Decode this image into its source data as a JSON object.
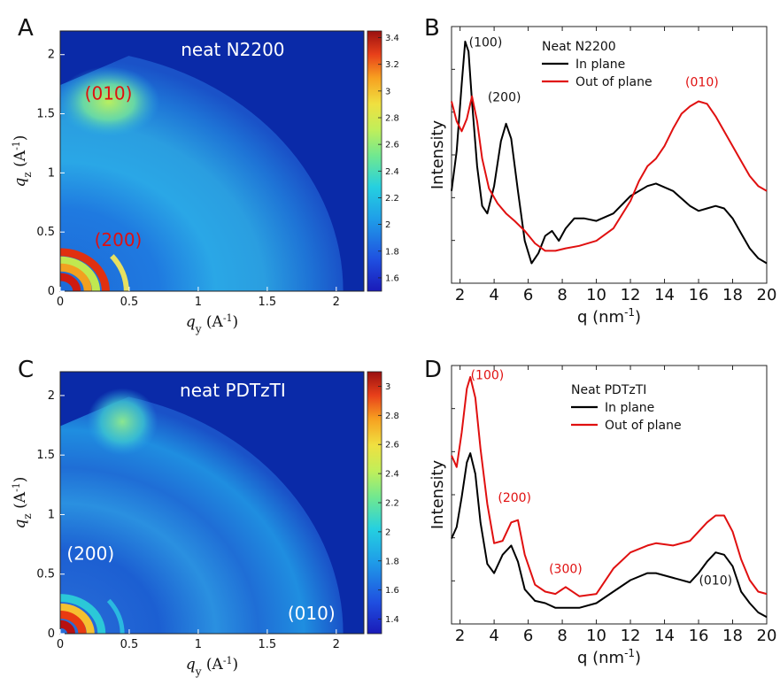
{
  "panel_letters": [
    "A",
    "B",
    "C",
    "D"
  ],
  "colors": {
    "map_background": "#0a2aa8",
    "in_plane": "#000000",
    "out_of_plane": "#e01010",
    "annotation_red": "#e01010",
    "annotation_black": "#111111"
  },
  "chart_data": [
    {
      "panel": "A",
      "type": "heatmap",
      "title": "neat N2200",
      "xlabel_main": "q",
      "xlabel_sub": "y",
      "xlabel_unit": "(A",
      "xlabel_unit_sup": "-1",
      "ylabel_main": "q",
      "ylabel_sub": "z",
      "ylabel_unit": "(A",
      "ylabel_unit_sup": "-1",
      "xlim": [
        0,
        2.2
      ],
      "ylim": [
        0,
        2.2
      ],
      "xticks": [
        "0",
        "0.5",
        "1",
        "1.5",
        "2"
      ],
      "yticks": [
        "0",
        "0.5",
        "1",
        "1.5",
        "2"
      ],
      "colorbar_ticks": [
        "1.6",
        "1.8",
        "2",
        "2.2",
        "2.4",
        "2.6",
        "2.8",
        "3",
        "3.2",
        "3.4"
      ],
      "colorbar_range": [
        1.5,
        3.45
      ],
      "annotations": [
        {
          "text": "(010)",
          "qy": 0.35,
          "qz": 1.62,
          "color": "red"
        },
        {
          "text": "(200)",
          "qy": 0.42,
          "qz": 0.38,
          "color": "red"
        }
      ]
    },
    {
      "panel": "B",
      "type": "line",
      "legend_title": "Neat N2200",
      "xlabel": "q (nm",
      "xlabel_sup": "-1",
      "xlabel_end": ")",
      "ylabel": "Intensity",
      "xlim": [
        1.5,
        20
      ],
      "xticks": [
        "2",
        "4",
        "6",
        "8",
        "10",
        "12",
        "14",
        "16",
        "18",
        "20"
      ],
      "yticks_shown": false,
      "series": [
        {
          "name": "In plane",
          "color": "#000000",
          "x": [
            1.5,
            1.8,
            2.1,
            2.3,
            2.5,
            2.7,
            3.0,
            3.3,
            3.6,
            4.0,
            4.4,
            4.7,
            5.0,
            5.4,
            5.8,
            6.2,
            6.6,
            7.0,
            7.4,
            7.8,
            8.2,
            8.7,
            9.3,
            10.0,
            11.0,
            12.0,
            13.0,
            13.5,
            14.5,
            15.5,
            16.0,
            16.5,
            17.0,
            17.5,
            18.0,
            18.5,
            19.0,
            19.5,
            20.0
          ],
          "y": [
            0.42,
            0.58,
            0.85,
            1.02,
            0.98,
            0.78,
            0.52,
            0.36,
            0.33,
            0.44,
            0.62,
            0.69,
            0.63,
            0.42,
            0.22,
            0.13,
            0.17,
            0.24,
            0.26,
            0.22,
            0.27,
            0.31,
            0.31,
            0.3,
            0.33,
            0.4,
            0.44,
            0.45,
            0.42,
            0.36,
            0.34,
            0.35,
            0.36,
            0.35,
            0.31,
            0.25,
            0.19,
            0.15,
            0.13
          ]
        },
        {
          "name": "Out of plane",
          "color": "#e01010",
          "x": [
            1.5,
            1.8,
            2.1,
            2.4,
            2.7,
            3.0,
            3.3,
            3.7,
            4.2,
            4.7,
            5.2,
            5.8,
            6.4,
            7.0,
            7.6,
            8.2,
            9.0,
            10.0,
            11.0,
            12.0,
            12.5,
            13.0,
            13.5,
            14.0,
            14.5,
            15.0,
            15.5,
            16.0,
            16.5,
            17.0,
            17.5,
            18.0,
            18.5,
            19.0,
            19.5,
            20.0
          ],
          "y": [
            0.78,
            0.7,
            0.66,
            0.71,
            0.8,
            0.7,
            0.55,
            0.43,
            0.37,
            0.33,
            0.3,
            0.26,
            0.21,
            0.18,
            0.18,
            0.19,
            0.2,
            0.22,
            0.27,
            0.38,
            0.46,
            0.52,
            0.55,
            0.6,
            0.67,
            0.73,
            0.76,
            0.78,
            0.77,
            0.72,
            0.66,
            0.6,
            0.54,
            0.48,
            0.44,
            0.42
          ]
        }
      ],
      "annotations": [
        {
          "text": "(100)",
          "x": 3.5,
          "y": 1.0,
          "color": "black"
        },
        {
          "text": "(200)",
          "x": 4.6,
          "y": 0.78,
          "color": "black"
        },
        {
          "text": "(010)",
          "x": 16.2,
          "y": 0.84,
          "color": "red"
        }
      ]
    },
    {
      "panel": "C",
      "type": "heatmap",
      "title": "neat PDTzTI",
      "xlabel_main": "q",
      "xlabel_sub": "y",
      "xlabel_unit": "(A",
      "xlabel_unit_sup": "-1",
      "ylabel_main": "q",
      "ylabel_sub": "z",
      "ylabel_unit": "(A",
      "ylabel_unit_sup": "-1",
      "xlim": [
        0,
        2.2
      ],
      "ylim": [
        0,
        2.2
      ],
      "xticks": [
        "0",
        "0.5",
        "1",
        "1.5",
        "2"
      ],
      "yticks": [
        "0",
        "0.5",
        "1",
        "1.5",
        "2"
      ],
      "colorbar_ticks": [
        "1.4",
        "1.6",
        "1.8",
        "2",
        "2.2",
        "2.4",
        "2.6",
        "2.8",
        "3"
      ],
      "colorbar_range": [
        1.3,
        3.1
      ],
      "annotations": [
        {
          "text": "(200)",
          "qy": 0.22,
          "qz": 0.62,
          "color": "white"
        },
        {
          "text": "(010)",
          "qy": 1.82,
          "qz": 0.12,
          "color": "white"
        }
      ]
    },
    {
      "panel": "D",
      "type": "line",
      "legend_title": "Neat PDTzTI",
      "xlabel": "q (nm",
      "xlabel_sup": "-1",
      "xlabel_end": ")",
      "ylabel": "Intensity",
      "xlim": [
        1.5,
        20
      ],
      "xticks": [
        "2",
        "4",
        "6",
        "8",
        "10",
        "12",
        "14",
        "16",
        "18",
        "20"
      ],
      "yticks_shown": false,
      "series": [
        {
          "name": "In plane",
          "color": "#000000",
          "x": [
            1.5,
            1.8,
            2.1,
            2.4,
            2.6,
            2.9,
            3.2,
            3.6,
            4.0,
            4.5,
            5.0,
            5.4,
            5.8,
            6.4,
            7.0,
            7.6,
            8.2,
            9.0,
            10.0,
            11.0,
            12.0,
            13.0,
            13.5,
            14.5,
            15.5,
            16.0,
            16.5,
            17.0,
            17.5,
            18.0,
            18.5,
            19.0,
            19.5,
            20.0
          ],
          "y": [
            0.37,
            0.42,
            0.55,
            0.7,
            0.74,
            0.65,
            0.44,
            0.26,
            0.22,
            0.3,
            0.34,
            0.27,
            0.15,
            0.1,
            0.09,
            0.07,
            0.07,
            0.07,
            0.09,
            0.14,
            0.19,
            0.22,
            0.22,
            0.2,
            0.18,
            0.22,
            0.27,
            0.31,
            0.3,
            0.25,
            0.14,
            0.09,
            0.05,
            0.03
          ]
        },
        {
          "name": "Out of plane",
          "color": "#e01010",
          "x": [
            1.5,
            1.8,
            2.1,
            2.4,
            2.6,
            2.9,
            3.2,
            3.6,
            4.0,
            4.5,
            5.0,
            5.4,
            5.8,
            6.4,
            7.0,
            7.6,
            8.2,
            9.0,
            10.0,
            11.0,
            12.0,
            13.0,
            13.5,
            14.5,
            15.5,
            16.0,
            16.5,
            17.0,
            17.5,
            18.0,
            18.5,
            19.0,
            19.5,
            20.0
          ],
          "y": [
            0.73,
            0.68,
            0.83,
            1.02,
            1.07,
            0.98,
            0.76,
            0.52,
            0.35,
            0.36,
            0.44,
            0.45,
            0.3,
            0.17,
            0.14,
            0.13,
            0.16,
            0.12,
            0.13,
            0.24,
            0.31,
            0.34,
            0.35,
            0.34,
            0.36,
            0.4,
            0.44,
            0.47,
            0.47,
            0.4,
            0.28,
            0.19,
            0.14,
            0.13
          ]
        }
      ],
      "annotations": [
        {
          "text": "(100)",
          "x": 3.6,
          "y": 1.06,
          "color": "red"
        },
        {
          "text": "(200)",
          "x": 5.2,
          "y": 0.53,
          "color": "red"
        },
        {
          "text": "(300)",
          "x": 8.2,
          "y": 0.22,
          "color": "red"
        },
        {
          "text": "(010)",
          "x": 17.0,
          "y": 0.17,
          "color": "black"
        }
      ]
    }
  ]
}
